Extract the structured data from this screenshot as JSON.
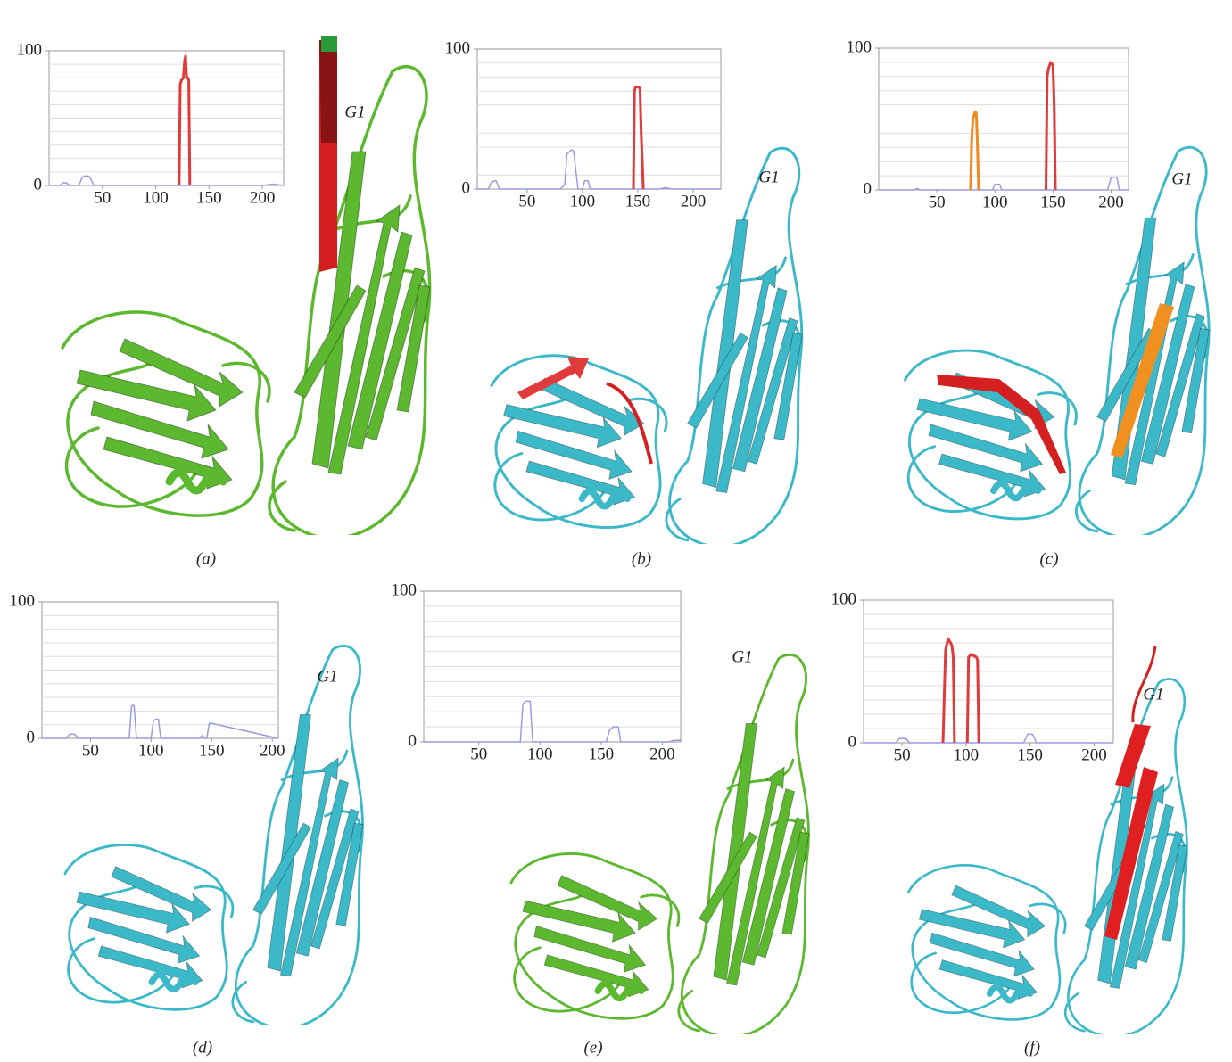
{
  "chart_data": [
    {
      "type": "line",
      "label": "(a)",
      "annotation": "G1",
      "xlim": [
        0,
        220
      ],
      "xticks": [
        50,
        100,
        150,
        200
      ],
      "ylim": [
        0,
        100
      ],
      "yticks": [
        0,
        100
      ],
      "ygrid": [
        10,
        20,
        30,
        40,
        50,
        60,
        70,
        80,
        90
      ],
      "series": [
        {
          "color": "#9a9ae0",
          "x": [
            0,
            10,
            13,
            16,
            20,
            28,
            31,
            33,
            37,
            39,
            42,
            60,
            120,
            200,
            210,
            220
          ],
          "values": [
            0,
            0,
            2,
            2,
            0,
            0,
            6,
            7,
            7,
            5,
            0,
            0,
            0,
            0,
            1,
            0
          ]
        },
        {
          "color": "#e03a3a",
          "x": [
            122,
            123,
            124,
            126,
            127,
            128,
            129,
            130,
            131,
            132
          ],
          "values": [
            0,
            75,
            78,
            80,
            92,
            96,
            80,
            80,
            78,
            0
          ]
        }
      ]
    },
    {
      "type": "line",
      "label": "(b)",
      "annotation": "G1",
      "xlim": [
        5,
        225
      ],
      "xticks": [
        50,
        100,
        150,
        200
      ],
      "ylim": [
        0,
        100
      ],
      "yticks": [
        0,
        100
      ],
      "ygrid": [
        10,
        20,
        30,
        40,
        50,
        60,
        70,
        80,
        90
      ],
      "series": [
        {
          "color": "#9a9ae0",
          "x": [
            5,
            15,
            18,
            22,
            25,
            60,
            80,
            84,
            86,
            90,
            92,
            96,
            100,
            102,
            105,
            107,
            110,
            170,
            175,
            180,
            225
          ],
          "values": [
            0,
            0,
            5,
            6,
            0,
            0,
            0,
            3,
            25,
            28,
            27,
            0,
            0,
            6,
            6,
            0,
            0,
            0,
            1,
            0,
            0
          ]
        },
        {
          "color": "#e03a3a",
          "x": [
            146,
            147,
            148,
            150,
            152,
            153,
            154,
            155
          ],
          "values": [
            0,
            70,
            73,
            73,
            72,
            40,
            20,
            0
          ]
        }
      ]
    },
    {
      "type": "line",
      "label": "(c)",
      "annotation": "G1",
      "xlim": [
        0,
        215
      ],
      "xticks": [
        50,
        100,
        150,
        200
      ],
      "ylim": [
        0,
        100
      ],
      "yticks": [
        0,
        100
      ],
      "ygrid": [
        10,
        20,
        30,
        40,
        50,
        60,
        70,
        80,
        90
      ],
      "series": [
        {
          "color": "#9a9ae0",
          "x": [
            0,
            30,
            33,
            36,
            90,
            98,
            100,
            104,
            106,
            190,
            197,
            200,
            205,
            207,
            215
          ],
          "values": [
            0,
            0,
            1,
            0,
            0,
            0,
            4,
            4,
            0,
            0,
            0,
            9,
            9,
            0,
            0
          ]
        },
        {
          "color": "#f08a20",
          "x": [
            79,
            80,
            81,
            83,
            84,
            85,
            86
          ],
          "values": [
            0,
            35,
            50,
            55,
            54,
            30,
            0
          ]
        },
        {
          "color": "#e03a3a",
          "x": [
            144,
            145,
            146,
            148,
            150,
            151,
            152
          ],
          "values": [
            0,
            80,
            85,
            90,
            88,
            60,
            0
          ]
        }
      ]
    },
    {
      "type": "line",
      "label": "(d)",
      "annotation": "G1",
      "xlim": [
        10,
        205
      ],
      "xticks": [
        50,
        100,
        150,
        200
      ],
      "ylim": [
        0,
        100
      ],
      "yticks": [
        0,
        100
      ],
      "ygrid": [
        10,
        20,
        30,
        40,
        50,
        60,
        70,
        80,
        90
      ],
      "series": [
        {
          "color": "#9a9ae0",
          "x": [
            10,
            30,
            33,
            37,
            40,
            80,
            82,
            84,
            86,
            88,
            100,
            102,
            104,
            106,
            108,
            140,
            142,
            144,
            146,
            148,
            150,
            205
          ],
          "values": [
            0,
            0,
            3,
            3,
            0,
            0,
            0,
            24,
            24,
            0,
            0,
            13,
            14,
            14,
            0,
            0,
            2,
            0,
            0,
            11,
            11,
            0
          ]
        }
      ]
    },
    {
      "type": "line",
      "label": "(e)",
      "annotation": "G1",
      "xlim": [
        5,
        215
      ],
      "xticks": [
        50,
        100,
        150,
        200
      ],
      "ylim": [
        0,
        100
      ],
      "yticks": [
        0,
        100
      ],
      "ygrid": [
        10,
        20,
        30,
        40,
        50,
        60,
        70,
        80,
        90
      ],
      "series": [
        {
          "color": "#9a9ae0",
          "x": [
            5,
            84,
            86,
            88,
            92,
            94,
            154,
            157,
            160,
            164,
            166,
            205,
            210,
            215
          ],
          "values": [
            0,
            0,
            25,
            27,
            27,
            0,
            0,
            8,
            10,
            10,
            0,
            0,
            1,
            1
          ]
        }
      ]
    },
    {
      "type": "line",
      "label": "(f)",
      "annotation": "G1",
      "xlim": [
        20,
        215
      ],
      "xticks": [
        50,
        100,
        150,
        200
      ],
      "ylim": [
        0,
        100
      ],
      "yticks": [
        0,
        100
      ],
      "ygrid": [
        10,
        20,
        30,
        40,
        50,
        60,
        70,
        80,
        90
      ],
      "series": [
        {
          "color": "#9a9ae0",
          "x": [
            20,
            45,
            48,
            53,
            56,
            145,
            148,
            152,
            155,
            215
          ],
          "values": [
            0,
            0,
            3,
            3,
            0,
            0,
            6,
            6,
            0,
            0
          ]
        },
        {
          "color": "#e03a3a",
          "x": [
            82,
            84,
            86,
            88,
            89,
            90,
            91
          ],
          "values": [
            0,
            65,
            73,
            70,
            68,
            60,
            0
          ]
        },
        {
          "color": "#e03a3a",
          "x": [
            101,
            102,
            104,
            108,
            109,
            110
          ],
          "values": [
            0,
            60,
            62,
            60,
            58,
            0
          ]
        }
      ]
    }
  ]
}
